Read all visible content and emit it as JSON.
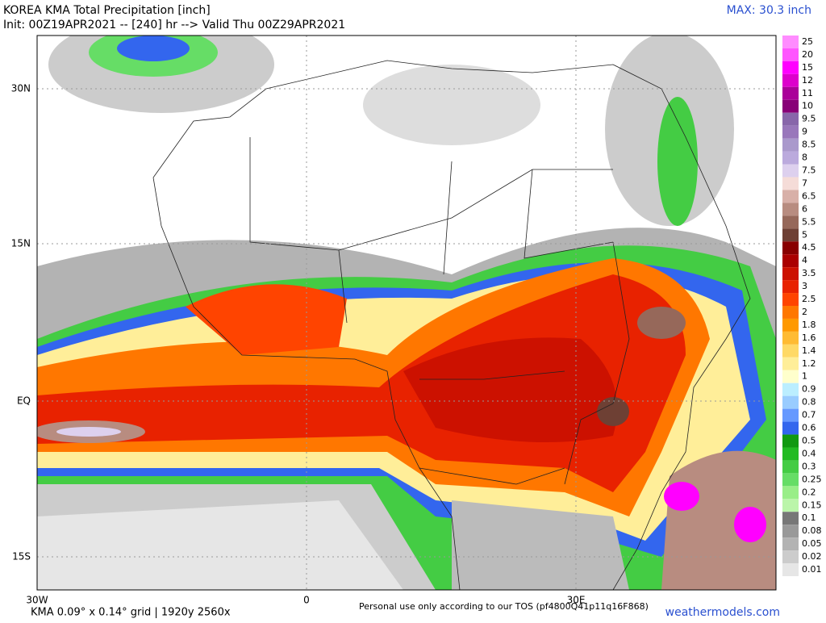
{
  "header": {
    "title": "KOREA KMA Total Precipitation [inch]",
    "subtitle": "Init: 00Z19APR2021 -- [240] hr --> Valid Thu 00Z29APR2021",
    "max": "MAX: 30.3 inch"
  },
  "axes": {
    "lat": [
      "30N",
      "15N",
      "EQ",
      "15S"
    ],
    "lon": [
      "30W",
      "0",
      "30E"
    ]
  },
  "legend": {
    "items": [
      {
        "label": "25",
        "color": "#ff8cff"
      },
      {
        "label": "20",
        "color": "#ff55ff"
      },
      {
        "label": "15",
        "color": "#ff00ff"
      },
      {
        "label": "12",
        "color": "#dd00cc"
      },
      {
        "label": "11",
        "color": "#aa0099"
      },
      {
        "label": "10",
        "color": "#880077"
      },
      {
        "label": "9.5",
        "color": "#8866aa"
      },
      {
        "label": "9",
        "color": "#9977bb"
      },
      {
        "label": "8.5",
        "color": "#aa99cc"
      },
      {
        "label": "8",
        "color": "#bbaadd"
      },
      {
        "label": "7.5",
        "color": "#ddd0ee"
      },
      {
        "label": "7",
        "color": "#f5dcd8"
      },
      {
        "label": "6.5",
        "color": "#d8b0a8"
      },
      {
        "label": "6",
        "color": "#b88c80"
      },
      {
        "label": "5.5",
        "color": "#96685a"
      },
      {
        "label": "5",
        "color": "#6e4034"
      },
      {
        "label": "4.5",
        "color": "#880000"
      },
      {
        "label": "4",
        "color": "#aa0000"
      },
      {
        "label": "3.5",
        "color": "#cc1100"
      },
      {
        "label": "3",
        "color": "#e82200"
      },
      {
        "label": "2.5",
        "color": "#ff4400"
      },
      {
        "label": "2",
        "color": "#ff7700"
      },
      {
        "label": "1.8",
        "color": "#ff9900"
      },
      {
        "label": "1.6",
        "color": "#ffbb33"
      },
      {
        "label": "1.4",
        "color": "#ffd966"
      },
      {
        "label": "1.2",
        "color": "#ffee99"
      },
      {
        "label": "1",
        "color": "#ffffcc"
      },
      {
        "label": "0.9",
        "color": "#bbeeff"
      },
      {
        "label": "0.8",
        "color": "#99ccff"
      },
      {
        "label": "0.7",
        "color": "#6699ff"
      },
      {
        "label": "0.6",
        "color": "#3366ee"
      },
      {
        "label": "0.5",
        "color": "#119911"
      },
      {
        "label": "0.4",
        "color": "#22bb22"
      },
      {
        "label": "0.3",
        "color": "#44cc44"
      },
      {
        "label": "0.25",
        "color": "#66dd66"
      },
      {
        "label": "0.2",
        "color": "#99ee88"
      },
      {
        "label": "0.15",
        "color": "#bbf5aa"
      },
      {
        "label": "0.1",
        "color": "#777777"
      },
      {
        "label": "0.08",
        "color": "#999999"
      },
      {
        "label": "0.05",
        "color": "#b3b3b3"
      },
      {
        "label": "0.02",
        "color": "#cccccc"
      },
      {
        "label": "0.01",
        "color": "#e6e6e6"
      }
    ]
  },
  "footer": {
    "grid": "KMA 0.09° x 0.14° grid | 1920y 2560x",
    "tos": "Personal use only according to our TOS (pf4800Q41p11q16F868)",
    "site": "weathermodels.com"
  }
}
